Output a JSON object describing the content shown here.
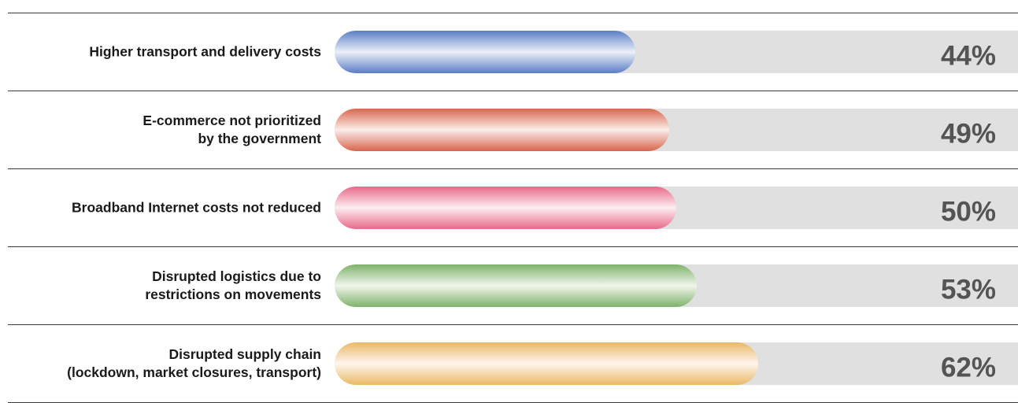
{
  "chart_data": {
    "type": "bar",
    "orientation": "horizontal",
    "categories": [
      [
        "Higher transport and delivery costs"
      ],
      [
        "E-commerce not prioritized",
        "by the government"
      ],
      [
        "Broadband Internet costs not reduced"
      ],
      [
        "Disrupted logistics due to",
        "restrictions on movements"
      ],
      [
        "Disrupted supply chain",
        "(lockdown, market closures, transport)"
      ]
    ],
    "values": [
      44,
      49,
      50,
      53,
      62
    ],
    "value_labels": [
      "44%",
      "49%",
      "50%",
      "53%",
      "62%"
    ],
    "xlim": [
      0,
      100
    ],
    "colors": [
      "#5b7ec6",
      "#d9664e",
      "#e86a8a",
      "#7fb26a",
      "#ebb866"
    ],
    "track_color": "#e0e0e0",
    "grid": false,
    "legend": "none"
  }
}
